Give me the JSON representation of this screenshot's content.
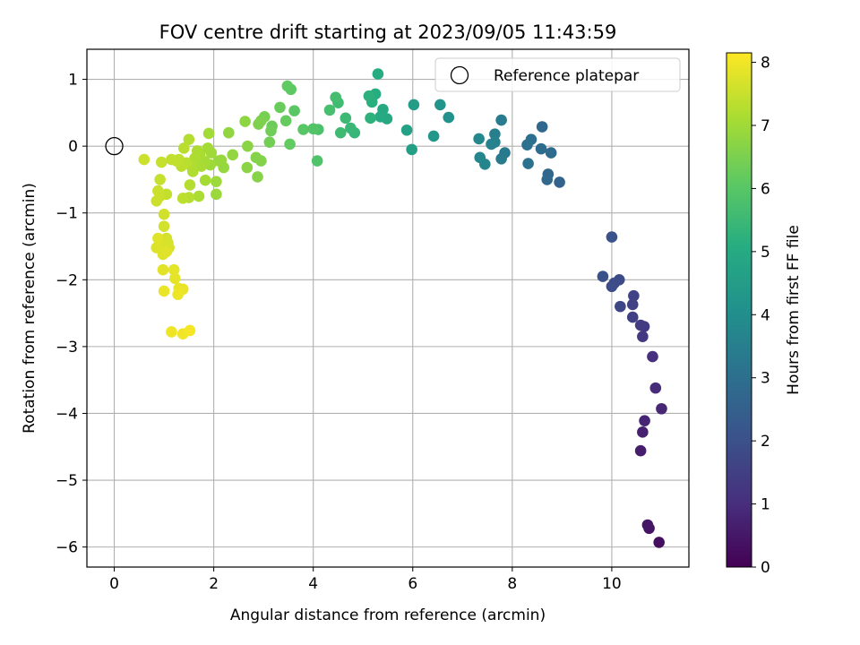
{
  "chart_data": {
    "type": "scatter",
    "title": "FOV centre drift starting at 2023/09/05 11:43:59",
    "xlabel": "Angular distance from reference (arcmin)",
    "ylabel": "Rotation from reference (arcmin)",
    "xlim": [
      -0.55,
      11.55
    ],
    "ylim": [
      -6.3,
      1.45
    ],
    "xticks": [
      0,
      2,
      4,
      6,
      8,
      10
    ],
    "yticks": [
      1,
      0,
      -1,
      -2,
      -3,
      -4,
      -5,
      -6
    ],
    "grid": true,
    "legend": {
      "label": "Reference platepar",
      "placement": "top-right"
    },
    "reference": {
      "x": 0,
      "y": 0
    },
    "colorbar": {
      "label": "Hours from first FF file",
      "min": 0,
      "max": 8.15,
      "ticks": [
        0,
        1,
        2,
        3,
        4,
        5,
        6,
        7,
        8
      ],
      "colormap": "viridis"
    },
    "points": [
      {
        "x": 10.95,
        "y": -5.93,
        "c": 0.3
      },
      {
        "x": 10.75,
        "y": -5.72,
        "c": 0.4
      },
      {
        "x": 10.72,
        "y": -5.67,
        "c": 0.45
      },
      {
        "x": 10.58,
        "y": -4.56,
        "c": 0.6
      },
      {
        "x": 10.62,
        "y": -4.28,
        "c": 0.7
      },
      {
        "x": 10.66,
        "y": -4.11,
        "c": 0.8
      },
      {
        "x": 11.0,
        "y": -3.93,
        "c": 0.85
      },
      {
        "x": 10.88,
        "y": -3.62,
        "c": 0.95
      },
      {
        "x": 10.82,
        "y": -3.15,
        "c": 1.05
      },
      {
        "x": 10.62,
        "y": -2.85,
        "c": 1.3
      },
      {
        "x": 10.65,
        "y": -2.7,
        "c": 1.35
      },
      {
        "x": 10.58,
        "y": -2.68,
        "c": 1.4
      },
      {
        "x": 10.42,
        "y": -2.56,
        "c": 1.5
      },
      {
        "x": 10.42,
        "y": -2.37,
        "c": 1.55
      },
      {
        "x": 10.44,
        "y": -2.24,
        "c": 1.6
      },
      {
        "x": 10.17,
        "y": -2.4,
        "c": 1.7
      },
      {
        "x": 10.15,
        "y": -2.0,
        "c": 1.8
      },
      {
        "x": 10.05,
        "y": -2.05,
        "c": 1.85
      },
      {
        "x": 10.0,
        "y": -2.1,
        "c": 1.9
      },
      {
        "x": 9.82,
        "y": -1.95,
        "c": 2.0
      },
      {
        "x": 10.0,
        "y": -1.36,
        "c": 2.1
      },
      {
        "x": 8.95,
        "y": -0.54,
        "c": 2.6
      },
      {
        "x": 8.72,
        "y": -0.42,
        "c": 2.7
      },
      {
        "x": 8.7,
        "y": -0.5,
        "c": 2.75
      },
      {
        "x": 8.6,
        "y": 0.29,
        "c": 2.8
      },
      {
        "x": 8.78,
        "y": -0.1,
        "c": 2.85
      },
      {
        "x": 8.58,
        "y": -0.04,
        "c": 2.9
      },
      {
        "x": 8.38,
        "y": 0.1,
        "c": 3.0
      },
      {
        "x": 8.3,
        "y": 0.02,
        "c": 3.05
      },
      {
        "x": 8.32,
        "y": -0.26,
        "c": 3.1
      },
      {
        "x": 7.85,
        "y": -0.1,
        "c": 3.3
      },
      {
        "x": 7.78,
        "y": -0.19,
        "c": 3.35
      },
      {
        "x": 7.78,
        "y": 0.39,
        "c": 3.4
      },
      {
        "x": 7.65,
        "y": 0.18,
        "c": 3.5
      },
      {
        "x": 7.65,
        "y": 0.06,
        "c": 3.55
      },
      {
        "x": 7.58,
        "y": 0.03,
        "c": 3.6
      },
      {
        "x": 7.45,
        "y": -0.27,
        "c": 3.7
      },
      {
        "x": 7.35,
        "y": -0.17,
        "c": 3.75
      },
      {
        "x": 7.33,
        "y": 0.11,
        "c": 3.8
      },
      {
        "x": 6.72,
        "y": 0.43,
        "c": 4.1
      },
      {
        "x": 6.55,
        "y": 0.62,
        "c": 4.2
      },
      {
        "x": 6.42,
        "y": 0.15,
        "c": 4.3
      },
      {
        "x": 6.02,
        "y": 0.62,
        "c": 4.5
      },
      {
        "x": 5.98,
        "y": -0.05,
        "c": 4.6
      },
      {
        "x": 5.88,
        "y": 0.24,
        "c": 4.7
      },
      {
        "x": 5.48,
        "y": 0.41,
        "c": 4.9
      },
      {
        "x": 5.4,
        "y": 0.55,
        "c": 4.95
      },
      {
        "x": 5.35,
        "y": 0.44,
        "c": 5.0
      },
      {
        "x": 5.3,
        "y": 1.08,
        "c": 5.05
      },
      {
        "x": 5.25,
        "y": 0.78,
        "c": 5.1
      },
      {
        "x": 5.18,
        "y": 0.66,
        "c": 5.15
      },
      {
        "x": 5.12,
        "y": 0.75,
        "c": 5.2
      },
      {
        "x": 5.15,
        "y": 0.42,
        "c": 5.25
      },
      {
        "x": 4.83,
        "y": 0.2,
        "c": 5.4
      },
      {
        "x": 4.75,
        "y": 0.27,
        "c": 5.45
      },
      {
        "x": 4.65,
        "y": 0.42,
        "c": 5.5
      },
      {
        "x": 4.55,
        "y": 0.2,
        "c": 5.55
      },
      {
        "x": 4.5,
        "y": 0.65,
        "c": 5.6
      },
      {
        "x": 4.45,
        "y": 0.73,
        "c": 5.65
      },
      {
        "x": 4.33,
        "y": 0.54,
        "c": 5.7
      },
      {
        "x": 4.1,
        "y": 0.25,
        "c": 5.8
      },
      {
        "x": 4.08,
        "y": -0.22,
        "c": 5.85
      },
      {
        "x": 4.0,
        "y": 0.26,
        "c": 5.9
      },
      {
        "x": 3.8,
        "y": 0.25,
        "c": 6.0
      },
      {
        "x": 3.62,
        "y": 0.53,
        "c": 6.05
      },
      {
        "x": 3.55,
        "y": 0.85,
        "c": 6.1
      },
      {
        "x": 3.48,
        "y": 0.9,
        "c": 6.12
      },
      {
        "x": 3.53,
        "y": 0.03,
        "c": 6.15
      },
      {
        "x": 3.45,
        "y": 0.38,
        "c": 6.2
      },
      {
        "x": 3.33,
        "y": 0.58,
        "c": 6.25
      },
      {
        "x": 3.17,
        "y": 0.3,
        "c": 6.3
      },
      {
        "x": 3.15,
        "y": 0.23,
        "c": 6.35
      },
      {
        "x": 3.12,
        "y": 0.06,
        "c": 6.4
      },
      {
        "x": 3.02,
        "y": 0.44,
        "c": 6.45
      },
      {
        "x": 2.95,
        "y": 0.38,
        "c": 6.5
      },
      {
        "x": 2.9,
        "y": 0.33,
        "c": 6.55
      },
      {
        "x": 2.95,
        "y": -0.22,
        "c": 6.6
      },
      {
        "x": 2.85,
        "y": -0.17,
        "c": 6.62
      },
      {
        "x": 2.88,
        "y": -0.46,
        "c": 6.65
      },
      {
        "x": 2.68,
        "y": 0.0,
        "c": 6.7
      },
      {
        "x": 2.67,
        "y": -0.32,
        "c": 6.72
      },
      {
        "x": 2.63,
        "y": 0.37,
        "c": 6.75
      },
      {
        "x": 2.3,
        "y": 0.2,
        "c": 6.8
      },
      {
        "x": 2.38,
        "y": -0.13,
        "c": 6.82
      },
      {
        "x": 2.2,
        "y": -0.32,
        "c": 6.85
      },
      {
        "x": 2.15,
        "y": -0.21,
        "c": 6.88
      },
      {
        "x": 2.1,
        "y": -0.22,
        "c": 6.9
      },
      {
        "x": 2.05,
        "y": -0.72,
        "c": 6.92
      },
      {
        "x": 2.05,
        "y": -0.53,
        "c": 6.95
      },
      {
        "x": 1.93,
        "y": -0.28,
        "c": 6.97
      },
      {
        "x": 1.95,
        "y": -0.1,
        "c": 7.0
      },
      {
        "x": 1.9,
        "y": 0.19,
        "c": 7.02
      },
      {
        "x": 1.88,
        "y": -0.03,
        "c": 7.04
      },
      {
        "x": 1.82,
        "y": -0.23,
        "c": 7.06
      },
      {
        "x": 1.83,
        "y": -0.51,
        "c": 7.08
      },
      {
        "x": 1.75,
        "y": -0.3,
        "c": 7.1
      },
      {
        "x": 1.72,
        "y": -0.13,
        "c": 7.12
      },
      {
        "x": 1.7,
        "y": -0.75,
        "c": 7.14
      },
      {
        "x": 1.67,
        "y": -0.07,
        "c": 7.16
      },
      {
        "x": 1.62,
        "y": -0.18,
        "c": 7.18
      },
      {
        "x": 1.58,
        "y": -0.38,
        "c": 7.2
      },
      {
        "x": 1.55,
        "y": -0.3,
        "c": 7.22
      },
      {
        "x": 1.5,
        "y": 0.1,
        "c": 7.24
      },
      {
        "x": 1.52,
        "y": -0.58,
        "c": 7.26
      },
      {
        "x": 1.5,
        "y": -0.77,
        "c": 7.28
      },
      {
        "x": 1.45,
        "y": -0.25,
        "c": 7.3
      },
      {
        "x": 1.4,
        "y": -0.03,
        "c": 7.32
      },
      {
        "x": 1.38,
        "y": -0.78,
        "c": 7.34
      },
      {
        "x": 1.35,
        "y": -0.3,
        "c": 7.36
      },
      {
        "x": 1.3,
        "y": -0.2,
        "c": 7.38
      },
      {
        "x": 1.25,
        "y": -0.22,
        "c": 7.4
      },
      {
        "x": 1.15,
        "y": -0.2,
        "c": 7.42
      },
      {
        "x": 1.05,
        "y": -0.72,
        "c": 7.44
      },
      {
        "x": 0.95,
        "y": -0.24,
        "c": 7.46
      },
      {
        "x": 0.92,
        "y": -0.5,
        "c": 7.48
      },
      {
        "x": 0.92,
        "y": -0.75,
        "c": 7.5
      },
      {
        "x": 0.88,
        "y": -0.67,
        "c": 7.52
      },
      {
        "x": 0.85,
        "y": -0.82,
        "c": 7.54
      },
      {
        "x": 0.6,
        "y": -0.2,
        "c": 7.55
      },
      {
        "x": 1.0,
        "y": -1.02,
        "c": 7.6
      },
      {
        "x": 1.0,
        "y": -1.2,
        "c": 7.62
      },
      {
        "x": 1.05,
        "y": -1.38,
        "c": 7.64
      },
      {
        "x": 1.08,
        "y": -1.45,
        "c": 7.66
      },
      {
        "x": 1.1,
        "y": -1.52,
        "c": 7.68
      },
      {
        "x": 1.0,
        "y": -1.5,
        "c": 7.7
      },
      {
        "x": 0.95,
        "y": -1.55,
        "c": 7.72
      },
      {
        "x": 0.98,
        "y": -1.62,
        "c": 7.74
      },
      {
        "x": 0.85,
        "y": -1.52,
        "c": 7.76
      },
      {
        "x": 0.88,
        "y": -1.38,
        "c": 7.78
      },
      {
        "x": 1.05,
        "y": -1.58,
        "c": 7.8
      },
      {
        "x": 0.98,
        "y": -1.85,
        "c": 7.82
      },
      {
        "x": 1.2,
        "y": -1.85,
        "c": 7.84
      },
      {
        "x": 1.22,
        "y": -1.98,
        "c": 7.86
      },
      {
        "x": 1.3,
        "y": -2.13,
        "c": 7.88
      },
      {
        "x": 1.38,
        "y": -2.14,
        "c": 7.9
      },
      {
        "x": 1.0,
        "y": -2.17,
        "c": 7.92
      },
      {
        "x": 1.28,
        "y": -2.22,
        "c": 7.94
      },
      {
        "x": 1.15,
        "y": -2.78,
        "c": 7.96
      },
      {
        "x": 1.38,
        "y": -2.81,
        "c": 8.0
      },
      {
        "x": 1.52,
        "y": -2.76,
        "c": 8.05
      }
    ]
  }
}
